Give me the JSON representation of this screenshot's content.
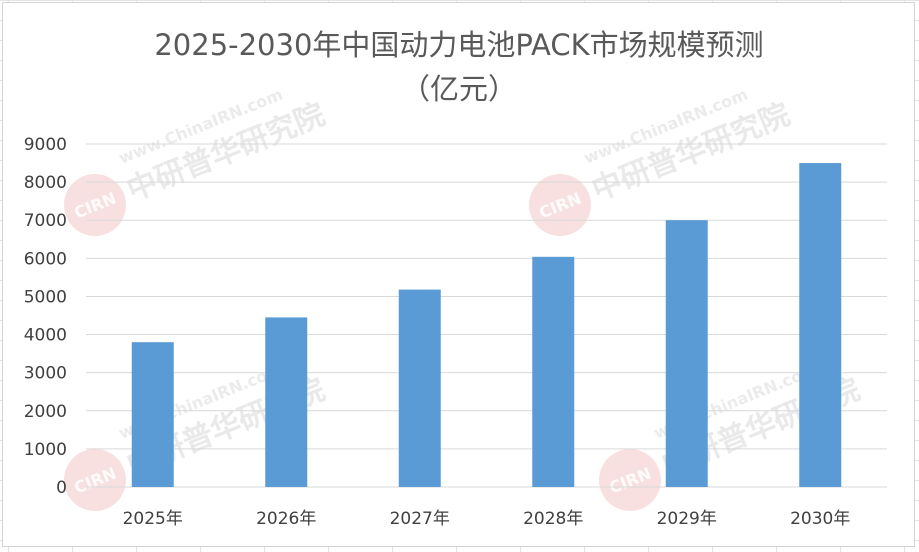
{
  "chart_data": {
    "type": "bar",
    "title_lines": [
      "2025-2030年中国动力电池PACK市场规模预测",
      "（亿元）"
    ],
    "categories": [
      "2025年",
      "2026年",
      "2027年",
      "2028年",
      "2029年",
      "2030年"
    ],
    "series": [
      {
        "values": [
          3800,
          4450,
          5180,
          6040,
          7000,
          8500
        ]
      }
    ],
    "ylim": [
      0,
      9000
    ],
    "y_ticks": [
      0,
      1000,
      2000,
      3000,
      4000,
      5000,
      6000,
      7000,
      8000,
      9000
    ],
    "xlabel": "",
    "ylabel": "",
    "grid": true,
    "legend": "none",
    "bar_color": "#5b9bd5"
  },
  "watermark": {
    "url": "www.ChinaIRN.com",
    "name": "中研普华研究院",
    "badge": "CIRN"
  }
}
